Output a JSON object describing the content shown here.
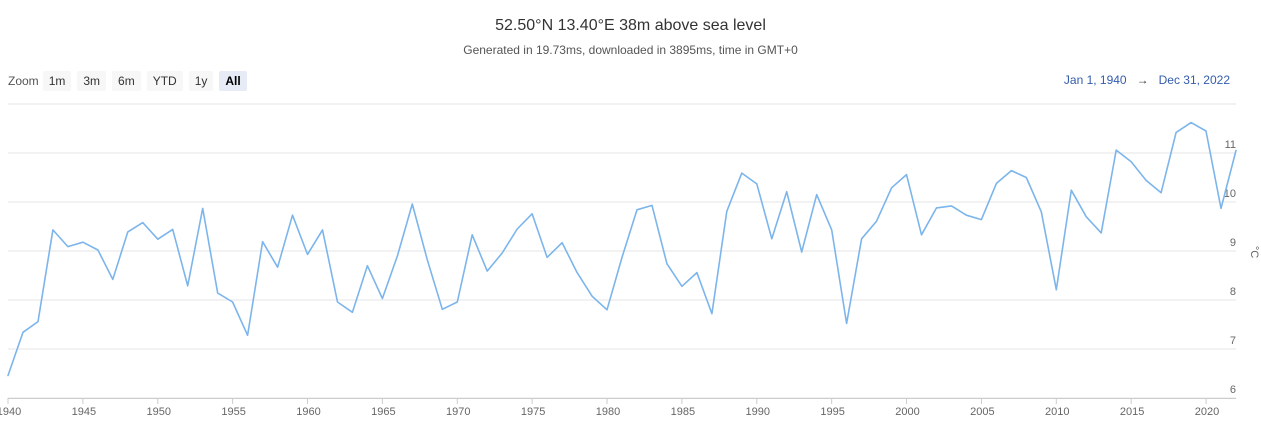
{
  "header": {
    "title": "52.50°N 13.40°E 38m above sea level",
    "subtitle": "Generated in 19.73ms, downloaded in 3895ms, time in GMT+0"
  },
  "zoom": {
    "label": "Zoom",
    "buttons": [
      {
        "label": "1m"
      },
      {
        "label": "3m"
      },
      {
        "label": "6m"
      },
      {
        "label": "YTD"
      },
      {
        "label": "1y"
      },
      {
        "label": "All",
        "active": true
      }
    ]
  },
  "range": {
    "from": "Jan 1, 1940",
    "arrow": "→",
    "to": "Dec 31, 2022"
  },
  "chart_data": {
    "type": "line",
    "title": "52.50°N 13.40°E 38m above sea level",
    "ylabel": "°C",
    "xlim": [
      1940,
      2022
    ],
    "ylim": [
      6,
      12
    ],
    "yticks": [
      6,
      7,
      8,
      9,
      10,
      11
    ],
    "xticks": [
      1940,
      1945,
      1950,
      1955,
      1960,
      1965,
      1970,
      1975,
      1980,
      1985,
      1990,
      1995,
      2000,
      2005,
      2010,
      2015,
      2020
    ],
    "grid": true,
    "color": "#7cb5ec",
    "series": [
      {
        "x": [
          1940,
          1941,
          1942,
          1943,
          1944,
          1945,
          1946,
          1947,
          1948,
          1949,
          1950,
          1951,
          1952,
          1953,
          1954,
          1955,
          1956,
          1957,
          1958,
          1959,
          1960,
          1961,
          1962,
          1963,
          1964,
          1965,
          1966,
          1967,
          1968,
          1969,
          1970,
          1971,
          1972,
          1973,
          1974,
          1975,
          1976,
          1977,
          1978,
          1979,
          1980,
          1981,
          1982,
          1983,
          1984,
          1985,
          1986,
          1987,
          1988,
          1989,
          1990,
          1991,
          1992,
          1993,
          1994,
          1995,
          1996,
          1997,
          1998,
          1999,
          2000,
          2001,
          2002,
          2003,
          2004,
          2005,
          2006,
          2007,
          2008,
          2009,
          2010,
          2011,
          2012,
          2013,
          2014,
          2015,
          2016,
          2017,
          2018,
          2019,
          2020,
          2021,
          2022
        ],
        "values": [
          6.46,
          7.34,
          7.56,
          9.43,
          9.09,
          9.18,
          9.02,
          8.42,
          9.39,
          9.58,
          9.24,
          9.44,
          8.29,
          9.87,
          8.14,
          7.96,
          7.28,
          9.19,
          8.67,
          9.73,
          8.93,
          9.43,
          7.96,
          7.75,
          8.7,
          8.03,
          8.9,
          9.96,
          8.82,
          7.81,
          7.96,
          9.33,
          8.59,
          8.96,
          9.45,
          9.76,
          8.87,
          9.17,
          8.56,
          8.08,
          7.8,
          8.87,
          9.84,
          9.93,
          8.74,
          8.28,
          8.56,
          7.72,
          9.81,
          10.59,
          10.37,
          9.25,
          10.21,
          8.98,
          10.15,
          9.43,
          7.52,
          9.25,
          9.61,
          10.29,
          10.56,
          9.33,
          9.88,
          9.92,
          9.73,
          9.64,
          10.38,
          10.64,
          10.5,
          9.8,
          8.21,
          10.24,
          9.7,
          9.37,
          11.06,
          10.82,
          10.44,
          10.19,
          11.42,
          11.62,
          11.45,
          9.87,
          11.05
        ]
      }
    ]
  }
}
